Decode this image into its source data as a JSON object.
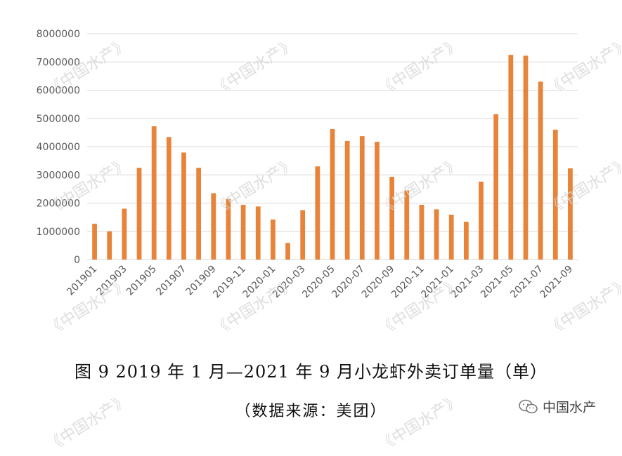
{
  "chart_data": {
    "type": "bar",
    "categories": [
      "201901",
      "201902",
      "201903",
      "201904",
      "201905",
      "201906",
      "201907",
      "201908",
      "201909",
      "201910",
      "2019-11",
      "2019-12",
      "2020-01",
      "2020-02",
      "2020-03",
      "2020-04",
      "2020-05",
      "2020-06",
      "2020-07",
      "2020-08",
      "2020-09",
      "2020-10",
      "2020-11",
      "2020-12",
      "2021-01",
      "2021-02",
      "2021-03",
      "2021-04",
      "2021-05",
      "2021-06",
      "2021-07",
      "2021-08",
      "2021-09"
    ],
    "tick_labels": [
      "201901",
      "",
      "201903",
      "",
      "201905",
      "",
      "201907",
      "",
      "201909",
      "",
      "2019-11",
      "",
      "2020-01",
      "",
      "2020-03",
      "",
      "2020-05",
      "",
      "2020-07",
      "",
      "2020-09",
      "",
      "2020-11",
      "",
      "2021-01",
      "",
      "2021-03",
      "",
      "2021-05",
      "",
      "2021-07",
      "",
      "2021-09"
    ],
    "values": [
      1270000,
      1000000,
      1800000,
      3250000,
      4720000,
      4340000,
      3790000,
      3250000,
      2350000,
      2150000,
      1940000,
      1880000,
      1420000,
      590000,
      1750000,
      3300000,
      4620000,
      4200000,
      4370000,
      4170000,
      2930000,
      2450000,
      1940000,
      1780000,
      1590000,
      1340000,
      2760000,
      5150000,
      7250000,
      7220000,
      6300000,
      4600000,
      3230000
    ],
    "y_ticks": [
      "0",
      "1000000",
      "2000000",
      "3000000",
      "4000000",
      "5000000",
      "6000000",
      "7000000",
      "8000000"
    ],
    "ylim": [
      0,
      8000000
    ],
    "grid": true,
    "bar_color": "#E8833A",
    "title": "",
    "xlabel": "",
    "ylabel": ""
  },
  "caption": {
    "main": "图 9 2019 年 1 月—2021 年 9 月小龙虾外卖订单量（单）",
    "source": "（数据来源：美团）"
  },
  "watermark": "《中国水产》",
  "brand": {
    "name": "中国水产",
    "icon": "wechat-icon"
  }
}
